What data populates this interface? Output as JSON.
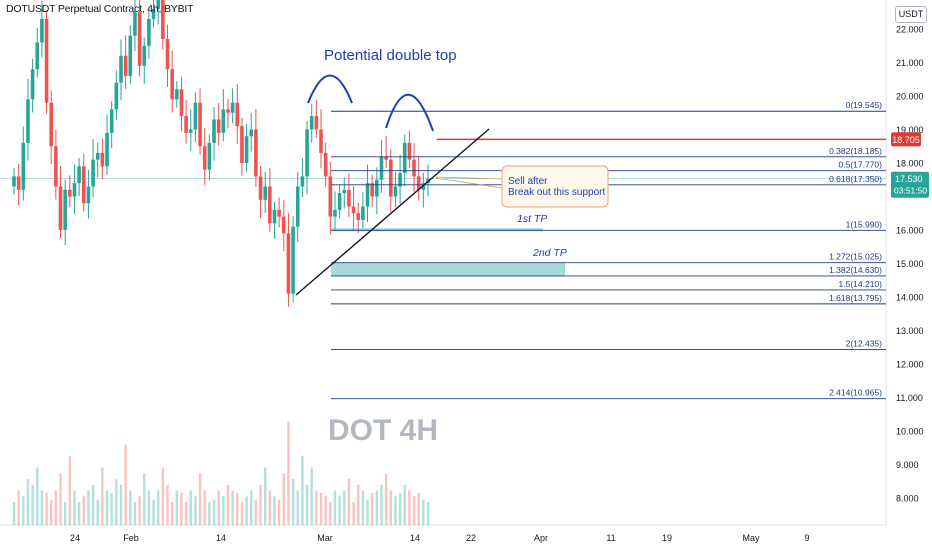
{
  "header": {
    "symbol_title": "DOTUSDT Perpetual Contract, 4h, BYBIT",
    "currency": "USDT"
  },
  "annotations": {
    "pattern_label": "Potential double top",
    "watermark": "DOT 4H",
    "callout_line1": "Sell after",
    "callout_line2": "Break out this support",
    "tp1": "1st TP",
    "tp2": "2nd TP"
  },
  "price_badges": {
    "resistance": "18.705",
    "last_price": "17.530",
    "countdown": "03:51:50"
  },
  "colors": {
    "up": "#26a69a",
    "down": "#ef5350",
    "fib_line": "#1e3a8a",
    "annotation": "#1e40af",
    "resistance": "#e53935",
    "tp_zone": "#26a69a",
    "callout_border": "#f0a070",
    "callout_bg": "#fff8ec"
  },
  "chart_data": {
    "type": "candlestick",
    "xlabel": "",
    "ylabel": "",
    "ylim": [
      7.2,
      22.9
    ],
    "y_ticks": [
      "22.000",
      "21.000",
      "20.000",
      "19.000",
      "18.000",
      "16.000",
      "15.000",
      "14.000",
      "13.000",
      "12.000",
      "11.000",
      "10.000",
      "9.000",
      "8.000"
    ],
    "x_ticks": [
      "24",
      "Feb",
      "14",
      "Mar",
      "14",
      "22",
      "Apr",
      "11",
      "19",
      "May",
      "9"
    ],
    "fib_levels": [
      {
        "label": "0(19.545)",
        "value": 19.545
      },
      {
        "label": "0.382(18.185)",
        "value": 18.185
      },
      {
        "label": "0.5(17.770)",
        "value": 17.77
      },
      {
        "label": "0.618(17.350)",
        "value": 17.35
      },
      {
        "label": "1(15.990)",
        "value": 15.99
      },
      {
        "label": "1.272(15.025)",
        "value": 15.025
      },
      {
        "label": "1.382(14.630)",
        "value": 14.63
      },
      {
        "label": "1.5(14.210)",
        "value": 14.21
      },
      {
        "label": "1.618(13.795)",
        "value": 13.795
      },
      {
        "label": "2(12.435)",
        "value": 12.435
      },
      {
        "label": "2.414(10.965)",
        "value": 10.965
      }
    ],
    "resistance_level": 18.705,
    "last_price": 17.53,
    "tp1_value": 15.99,
    "tp2_range": [
      14.63,
      15.025
    ],
    "price_series": [
      17.6,
      17.2,
      18.6,
      19.9,
      20.8,
      21.6,
      22.3,
      19.8,
      18.5,
      17.3,
      16.0,
      17.2,
      17.0,
      17.4,
      17.9,
      16.8,
      17.3,
      18.1,
      18.3,
      17.9,
      18.9,
      19.6,
      20.4,
      21.2,
      20.6,
      21.8,
      22.5,
      20.9,
      21.5,
      22.3,
      22.6,
      23.2,
      21.7,
      20.8,
      19.9,
      20.2,
      19.4,
      18.9,
      19.0,
      19.8,
      18.5,
      17.8,
      18.6,
      19.3,
      18.9,
      19.6,
      19.5,
      19.8,
      19.1,
      18.0,
      18.8,
      19.0,
      17.6,
      16.9,
      17.3,
      16.2,
      16.6,
      16.4,
      15.9,
      14.1,
      16.1,
      17.3,
      17.6,
      19.0,
      19.4,
      19.0,
      18.3,
      17.6,
      16.4,
      16.6,
      17.1,
      17.2,
      16.7,
      16.5,
      16.3,
      16.7,
      17.4,
      17.0,
      17.5,
      18.2,
      18.1,
      17.0,
      17.3,
      17.7,
      18.6,
      18.1,
      17.6,
      17.2,
      17.4,
      17.53
    ],
    "volume_series": [
      0.2,
      0.3,
      0.25,
      0.4,
      0.35,
      0.5,
      0.3,
      0.28,
      0.22,
      0.3,
      0.45,
      0.2,
      0.6,
      0.3,
      0.2,
      0.25,
      0.3,
      0.35,
      0.22,
      0.5,
      0.3,
      0.28,
      0.4,
      0.35,
      0.7,
      0.3,
      0.2,
      0.25,
      0.45,
      0.3,
      0.22,
      0.3,
      0.5,
      0.35,
      0.2,
      0.3,
      0.28,
      0.2,
      0.3,
      0.25,
      0.45,
      0.3,
      0.2,
      0.22,
      0.3,
      0.25,
      0.35,
      0.3,
      0.28,
      0.2,
      0.25,
      0.3,
      0.22,
      0.35,
      0.5,
      0.3,
      0.25,
      0.22,
      0.45,
      0.9,
      0.4,
      0.3,
      0.6,
      0.35,
      0.5,
      0.3,
      0.28,
      0.25,
      0.2,
      0.3,
      0.25,
      0.3,
      0.4,
      0.2,
      0.35,
      0.3,
      0.22,
      0.28,
      0.3,
      0.35,
      0.45,
      0.3,
      0.25,
      0.28,
      0.35,
      0.3,
      0.25,
      0.28,
      0.22,
      0.2
    ]
  }
}
